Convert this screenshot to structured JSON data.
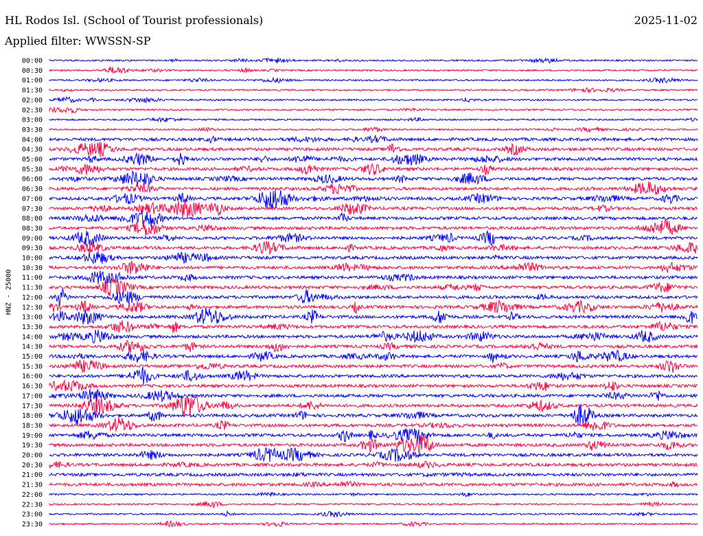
{
  "header": {
    "station": "HL Rodos Isl. (School of Tourist professionals)",
    "date": "2025-11-02",
    "filter": "Applied filter: WWSSN-SP"
  },
  "chart_data": {
    "type": "line",
    "ylabel": "HNZ - 25000",
    "trace_colors": [
      "#0000ff",
      "#ff0040"
    ],
    "rows": [
      "00:00",
      "00:30",
      "01:00",
      "01:30",
      "02:00",
      "02:30",
      "03:00",
      "03:30",
      "04:00",
      "04:30",
      "05:00",
      "05:30",
      "06:00",
      "06:30",
      "07:00",
      "07:30",
      "08:00",
      "08:30",
      "09:00",
      "09:30",
      "10:00",
      "10:30",
      "11:00",
      "11:30",
      "12:00",
      "12:30",
      "13:00",
      "13:30",
      "14:00",
      "14:30",
      "15:00",
      "15:30",
      "16:00",
      "16:30",
      "17:00",
      "17:30",
      "18:00",
      "18:30",
      "19:00",
      "19:30",
      "20:00",
      "20:30",
      "21:00",
      "21:30",
      "22:00",
      "22:30",
      "23:00",
      "23:30"
    ]
  }
}
